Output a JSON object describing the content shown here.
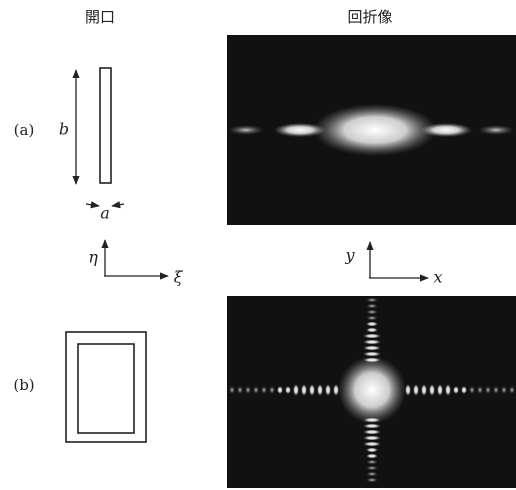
{
  "header": {
    "aperture": "開口",
    "pattern": "回折像"
  },
  "panels": [
    {
      "label": "(a)",
      "dim_height": "b",
      "dim_width": "a"
    },
    {
      "label": "(b)"
    }
  ],
  "axes": {
    "aperture_vertical": "η",
    "aperture_horizontal": "ξ",
    "pattern_vertical": "y",
    "pattern_horizontal": "x"
  }
}
